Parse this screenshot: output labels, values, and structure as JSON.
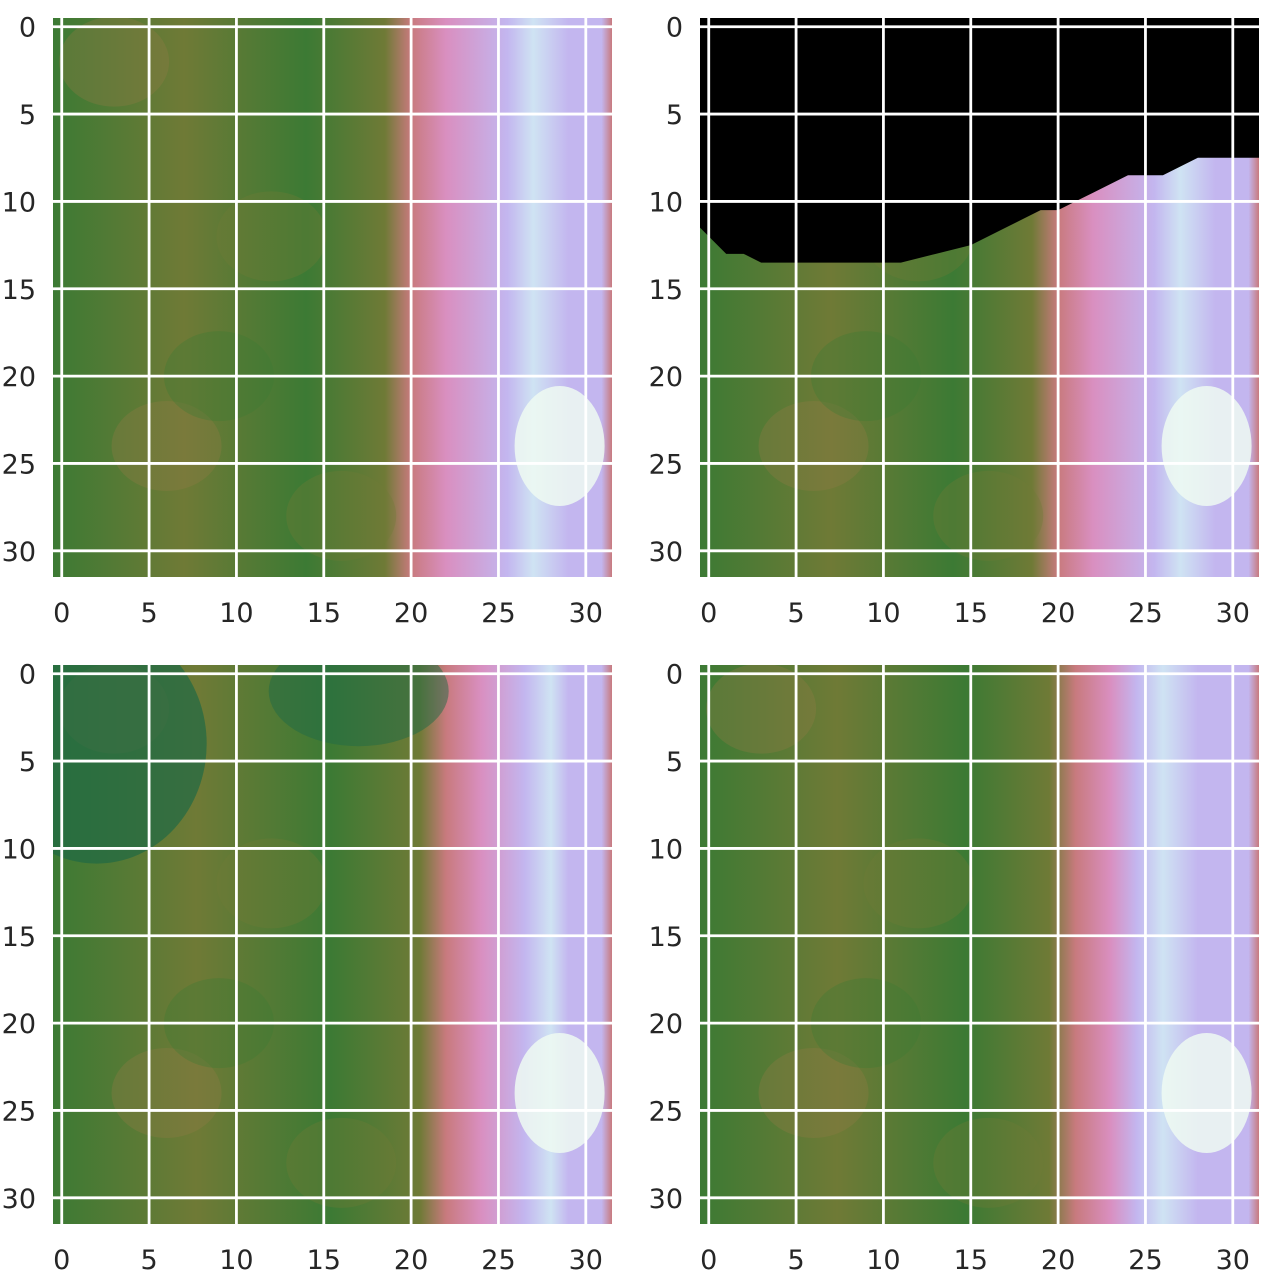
{
  "chart_data": [
    {
      "type": "heatmap",
      "title": "",
      "xlabel": "",
      "ylabel": "",
      "grid": true,
      "xlim": [
        -0.5,
        31.5
      ],
      "ylim": [
        31.5,
        -0.5
      ],
      "xticks": [
        "0",
        "5",
        "10",
        "15",
        "20",
        "25",
        "30"
      ],
      "yticks": [
        "0",
        "5",
        "10",
        "15",
        "20",
        "25",
        "30"
      ],
      "colormap": "cubehelix-like (dark green → olive → pink → lavender → white)",
      "band_edges": [
        20,
        26,
        29
      ],
      "masked_region": null
    },
    {
      "type": "heatmap",
      "title": "",
      "xlabel": "",
      "ylabel": "",
      "grid": true,
      "xlim": [
        -0.5,
        31.5
      ],
      "ylim": [
        31.5,
        -0.5
      ],
      "xticks": [
        "0",
        "5",
        "10",
        "15",
        "20",
        "25",
        "30"
      ],
      "yticks": [
        "0",
        "5",
        "10",
        "15",
        "20",
        "25",
        "30"
      ],
      "colormap": "cubehelix-like (dark green → olive → pink → lavender → white)",
      "band_edges": [
        20,
        26,
        29
      ],
      "masked_region": {
        "color": "#000000",
        "boundary_x": [
          -0.5,
          0,
          1,
          2,
          3,
          5,
          7,
          9,
          11,
          13,
          15,
          16,
          17,
          18,
          19,
          20,
          21,
          22,
          23,
          24,
          25,
          26,
          27,
          28,
          29,
          30,
          31,
          31.5
        ],
        "boundary_y": [
          11.5,
          12,
          13,
          13,
          13.5,
          13.5,
          13.5,
          13.5,
          13.5,
          13,
          12.5,
          12,
          11.5,
          11,
          10.5,
          10.5,
          10,
          9.5,
          9,
          8.5,
          8.5,
          8.5,
          8,
          7.5,
          7.5,
          7.5,
          7.5,
          7.5
        ]
      }
    },
    {
      "type": "heatmap",
      "title": "",
      "xlabel": "",
      "ylabel": "",
      "grid": true,
      "xlim": [
        -0.5,
        31.5
      ],
      "ylim": [
        31.5,
        -0.5
      ],
      "xticks": [
        "0",
        "5",
        "10",
        "15",
        "20",
        "25",
        "30"
      ],
      "yticks": [
        "0",
        "5",
        "10",
        "15",
        "20",
        "25",
        "30"
      ],
      "colormap": "cubehelix-like (dark green → olive → pink → lavender → white)",
      "band_edges": [
        22,
        27,
        29
      ],
      "masked_region": null
    },
    {
      "type": "heatmap",
      "title": "",
      "xlabel": "",
      "ylabel": "",
      "grid": true,
      "xlim": [
        -0.5,
        31.5
      ],
      "ylim": [
        31.5,
        -0.5
      ],
      "xticks": [
        "0",
        "5",
        "10",
        "15",
        "20",
        "25",
        "30"
      ],
      "yticks": [
        "0",
        "5",
        "10",
        "15",
        "20",
        "25",
        "30"
      ],
      "colormap": "cubehelix-like (dark green → olive → pink → lavender → white)",
      "band_edges": [
        21,
        25,
        28
      ],
      "masked_region": null
    }
  ],
  "colors": {
    "background": "#ffffff",
    "gridline": "#ffffff",
    "tick_label": "#262626",
    "mask": "#000000",
    "dark_green": "#1f6a45",
    "green": "#3c7a34",
    "olive": "#6f7a36",
    "brown": "#8f7a44",
    "rose": "#c87a7e",
    "pink": "#d98fc0",
    "lavender": "#c3b6ef",
    "ice": "#cfe3f3",
    "white_glow": "#eefaf2"
  }
}
